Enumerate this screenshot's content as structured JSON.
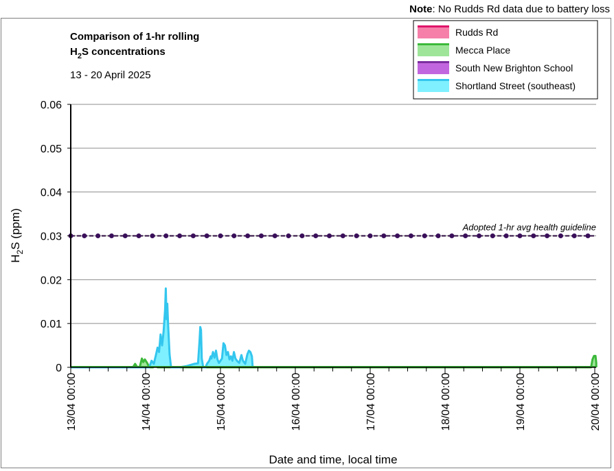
{
  "note": {
    "label": "Note",
    "text": ": No Rudds Rd data due to battery loss"
  },
  "chart_data": {
    "type": "area",
    "title": [
      "Comparison of 1-hr rolling",
      "H2S concentrations"
    ],
    "title_line2_parts": {
      "pre": "H",
      "sub": "2",
      "post": "S concentrations"
    },
    "subtitle": "13 - 20 April 2025",
    "xlabel": "Date and time, local time",
    "ylabel_parts": {
      "pre": "H",
      "sub": "2",
      "post": "S (ppm)"
    },
    "ylim": [
      0,
      0.06
    ],
    "yticks": [
      {
        "v": 0,
        "label": "0"
      },
      {
        "v": 0.01,
        "label": "0.01"
      },
      {
        "v": 0.02,
        "label": "0.02"
      },
      {
        "v": 0.03,
        "label": "0.03"
      },
      {
        "v": 0.04,
        "label": "0.04"
      },
      {
        "v": 0.05,
        "label": "0.05"
      },
      {
        "v": 0.06,
        "label": "0.06"
      }
    ],
    "xlim_days": [
      0,
      7
    ],
    "xticks": [
      {
        "d": 0,
        "label": "13/04 00:00"
      },
      {
        "d": 1,
        "label": "14/04 00:00"
      },
      {
        "d": 2,
        "label": "15/04 00:00"
      },
      {
        "d": 3,
        "label": "16/04 00:00"
      },
      {
        "d": 4,
        "label": "17/04 00:00"
      },
      {
        "d": 5,
        "label": "18/04 00:00"
      },
      {
        "d": 6,
        "label": "19/04 00:00"
      },
      {
        "d": 7,
        "label": "20/04 00:00"
      }
    ],
    "grid": true,
    "legend_position": "top-right",
    "series": [
      {
        "name": "Rudds Rd",
        "fill": "#f57fa9",
        "line": "#e0146a",
        "points": []
      },
      {
        "name": "Mecca Place",
        "fill": "#9ee59a",
        "line": "#3cb83a",
        "points": [
          [
            0,
            0
          ],
          [
            0.83,
            0
          ],
          [
            0.86,
            0.0008
          ],
          [
            0.89,
            0
          ],
          [
            0.92,
            0
          ],
          [
            0.95,
            0.002
          ],
          [
            0.97,
            0.0012
          ],
          [
            0.99,
            0.0018
          ],
          [
            1.02,
            0.001
          ],
          [
            1.05,
            0
          ],
          [
            1.1,
            0
          ],
          [
            1.13,
            0.0007
          ],
          [
            1.16,
            0
          ],
          [
            6.95,
            0
          ],
          [
            6.97,
            0.0018
          ],
          [
            6.99,
            0.0026
          ],
          [
            7.01,
            0.0026
          ],
          [
            7.02,
            0.001
          ],
          [
            7.02,
            0
          ]
        ]
      },
      {
        "name": "South New Brighton School",
        "fill": "#c266df",
        "line": "#7c2fa0",
        "points": []
      },
      {
        "name": "Shortland Street (southeast)",
        "fill": "#7ff0ff",
        "line": "#33c6ee",
        "points": [
          [
            0,
            0
          ],
          [
            1.05,
            0
          ],
          [
            1.08,
            0.0015
          ],
          [
            1.11,
            0.0008
          ],
          [
            1.14,
            0.003
          ],
          [
            1.16,
            0.0045
          ],
          [
            1.18,
            0.0035
          ],
          [
            1.2,
            0.0075
          ],
          [
            1.22,
            0.005
          ],
          [
            1.24,
            0.0082
          ],
          [
            1.26,
            0.013
          ],
          [
            1.27,
            0.018
          ],
          [
            1.28,
            0.011
          ],
          [
            1.29,
            0.0145
          ],
          [
            1.3,
            0.01
          ],
          [
            1.32,
            0.003
          ],
          [
            1.34,
            0
          ],
          [
            1.45,
            0
          ],
          [
            1.55,
            0.0003
          ],
          [
            1.65,
            0.0008
          ],
          [
            1.7,
            0.0009
          ],
          [
            1.72,
            0.006
          ],
          [
            1.73,
            0.0092
          ],
          [
            1.74,
            0.0085
          ],
          [
            1.75,
            0.002
          ],
          [
            1.77,
            0
          ],
          [
            1.8,
            0
          ],
          [
            1.82,
            0.0008
          ],
          [
            1.85,
            0.0015
          ],
          [
            1.87,
            0.0025
          ],
          [
            1.88,
            0.002
          ],
          [
            1.9,
            0.0035
          ],
          [
            1.92,
            0.0022
          ],
          [
            1.94,
            0.0038
          ],
          [
            1.96,
            0.0018
          ],
          [
            1.98,
            0.001
          ],
          [
            2.0,
            0.0015
          ],
          [
            2.02,
            0.002
          ],
          [
            2.04,
            0.0055
          ],
          [
            2.06,
            0.005
          ],
          [
            2.08,
            0.0028
          ],
          [
            2.1,
            0.0035
          ],
          [
            2.12,
            0.0018
          ],
          [
            2.14,
            0.0025
          ],
          [
            2.16,
            0.0015
          ],
          [
            2.18,
            0.0035
          ],
          [
            2.2,
            0.002
          ],
          [
            2.22,
            0.0015
          ],
          [
            2.25,
            0.001
          ],
          [
            2.28,
            0.0028
          ],
          [
            2.3,
            0.0015
          ],
          [
            2.33,
            0.0008
          ],
          [
            2.36,
            0.003
          ],
          [
            2.38,
            0.0038
          ],
          [
            2.4,
            0.0035
          ],
          [
            2.42,
            0.0025
          ],
          [
            2.43,
            0
          ]
        ]
      }
    ],
    "guideline": {
      "value": 0.03,
      "label": "Adopted 1-hr avg health guideline",
      "line_color": "#2b0a3d",
      "marker_color": "#3a0f5a",
      "marker_step_days": 0.1818
    }
  }
}
